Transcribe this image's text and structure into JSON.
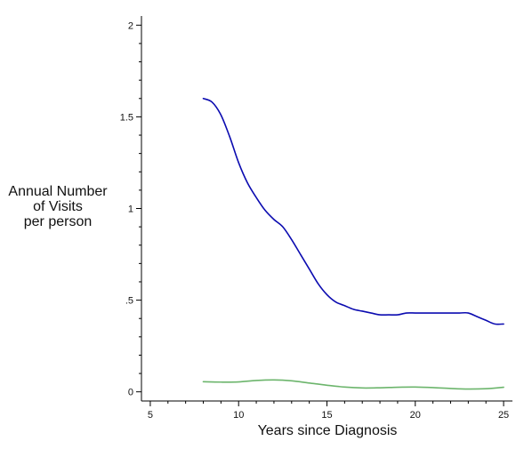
{
  "chart_data": {
    "type": "line",
    "xlabel": "Years since Diagnosis",
    "ylabel_lines": [
      "Annual Number",
      "of Visits",
      "per person"
    ],
    "xlim": [
      4.5,
      25.5
    ],
    "ylim": [
      -0.05,
      2.05
    ],
    "x_ticks": [
      5,
      10,
      15,
      20,
      25
    ],
    "x_tick_labels": [
      "5",
      "10",
      "15",
      "20",
      "25"
    ],
    "y_ticks": [
      0,
      0.5,
      1,
      1.5,
      2
    ],
    "y_tick_labels": [
      "0",
      ".5",
      "1",
      "1.5",
      "2"
    ],
    "grid": false,
    "series": [
      {
        "color": "#0b0bb0",
        "x": [
          8,
          8.5,
          9,
          9.5,
          10,
          10.5,
          11,
          11.5,
          12,
          12.5,
          13,
          13.5,
          14,
          14.5,
          15,
          15.5,
          16,
          16.5,
          17,
          17.5,
          18,
          18.5,
          19,
          19.5,
          20,
          20.5,
          21,
          21.5,
          22,
          22.5,
          23,
          23.5,
          24,
          24.5,
          25
        ],
        "values": [
          1.6,
          1.58,
          1.51,
          1.39,
          1.25,
          1.14,
          1.06,
          0.99,
          0.94,
          0.9,
          0.83,
          0.75,
          0.67,
          0.59,
          0.53,
          0.49,
          0.47,
          0.45,
          0.44,
          0.43,
          0.42,
          0.42,
          0.42,
          0.43,
          0.43,
          0.43,
          0.43,
          0.43,
          0.43,
          0.43,
          0.43,
          0.41,
          0.39,
          0.37,
          0.37
        ]
      },
      {
        "color": "#6cb56c",
        "x": [
          8,
          9,
          10,
          11,
          12,
          13,
          14,
          15,
          16,
          17,
          18,
          19,
          20,
          21,
          22,
          23,
          24,
          25
        ],
        "values": [
          0.055,
          0.053,
          0.054,
          0.062,
          0.065,
          0.06,
          0.048,
          0.036,
          0.026,
          0.021,
          0.022,
          0.025,
          0.026,
          0.023,
          0.018,
          0.015,
          0.017,
          0.025
        ]
      }
    ]
  }
}
